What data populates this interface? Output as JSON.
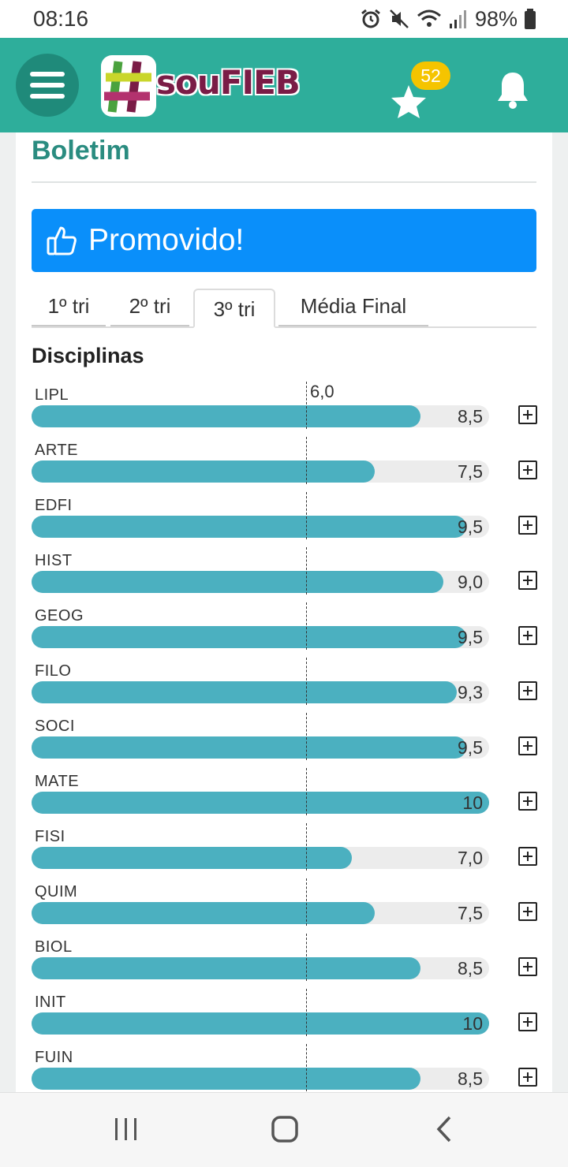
{
  "status_bar": {
    "time": "08:16",
    "battery": "98%",
    "icons": [
      "alarm-icon",
      "mute-icon",
      "wifi-icon",
      "signal-icon",
      "battery-icon"
    ]
  },
  "header": {
    "logo_text": "souFIEB",
    "star_count": "52",
    "icons": [
      "menu-icon",
      "star-icon",
      "bell-icon"
    ],
    "colors": {
      "appbar": "#2eae9b",
      "badge": "#f5c400"
    }
  },
  "page": {
    "title": "Boletim",
    "status_text": "Promovido!",
    "status_icon": "thumbs-up-icon",
    "status_color": "#0a8ffa",
    "tabs": [
      "1º tri",
      "2º tri",
      "3º tri",
      "Média Final"
    ],
    "active_tab": "3º tri",
    "section_title": "Disciplinas",
    "threshold_label": "6,0",
    "threshold_value": 6.0,
    "max_grade": 10,
    "bar_color": "#4bb0c0"
  },
  "subjects": [
    {
      "code": "LIPL",
      "grade_text": "8,5",
      "grade": 8.5
    },
    {
      "code": "ARTE",
      "grade_text": "7,5",
      "grade": 7.5
    },
    {
      "code": "EDFI",
      "grade_text": "9,5",
      "grade": 9.5
    },
    {
      "code": "HIST",
      "grade_text": "9,0",
      "grade": 9.0
    },
    {
      "code": "GEOG",
      "grade_text": "9,5",
      "grade": 9.5
    },
    {
      "code": "FILO",
      "grade_text": "9,3",
      "grade": 9.3
    },
    {
      "code": "SOCI",
      "grade_text": "9,5",
      "grade": 9.5
    },
    {
      "code": "MATE",
      "grade_text": "10",
      "grade": 10
    },
    {
      "code": "FISI",
      "grade_text": "7,0",
      "grade": 7.0
    },
    {
      "code": "QUIM",
      "grade_text": "7,5",
      "grade": 7.5
    },
    {
      "code": "BIOL",
      "grade_text": "8,5",
      "grade": 8.5
    },
    {
      "code": "INIT",
      "grade_text": "10",
      "grade": 10
    },
    {
      "code": "FUIN",
      "grade_text": "8,5",
      "grade": 8.5
    }
  ],
  "nav_bar": {
    "icons": [
      "recent-apps-icon",
      "home-icon",
      "back-icon"
    ]
  }
}
